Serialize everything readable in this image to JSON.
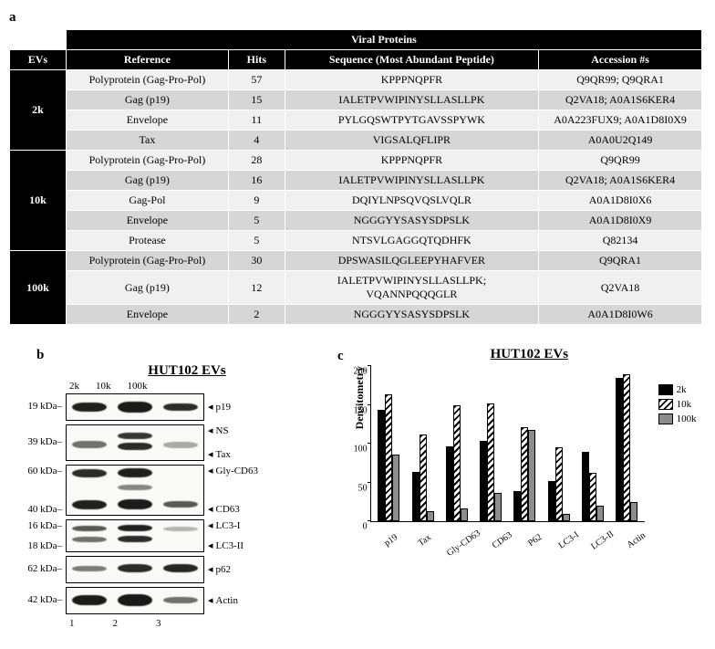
{
  "panels": {
    "a": "a",
    "b": "b",
    "c": "c"
  },
  "table": {
    "super_header": "Viral Proteins",
    "headers": {
      "evs": "EVs",
      "ref": "Reference",
      "hits": "Hits",
      "seq": "Sequence (Most Abundant Peptide)",
      "acc": "Accession #s"
    },
    "groups": [
      {
        "ev": "2k",
        "rows": [
          {
            "ref": "Polyprotein (Gag-Pro-Pol)",
            "hits": 57,
            "seq": "KPPPNQPFR",
            "acc": "Q9QR99; Q9QRA1",
            "shade": "light"
          },
          {
            "ref": "Gag (p19)",
            "hits": 15,
            "seq": "IALETPVWIPINYSLLASLLPK",
            "acc": "Q2VA18; A0A1S6KER4",
            "shade": "dark"
          },
          {
            "ref": "Envelope",
            "hits": 11,
            "seq": "PYLGQSWTPYTGAVSSPYWK",
            "acc": "A0A223FUX9; A0A1D8I0X9",
            "shade": "light"
          },
          {
            "ref": "Tax",
            "hits": 4,
            "seq": "VIGSALQFLIPR",
            "acc": "A0A0U2Q149",
            "shade": "dark"
          }
        ]
      },
      {
        "ev": "10k",
        "rows": [
          {
            "ref": "Polyprotein (Gag-Pro-Pol)",
            "hits": 28,
            "seq": "KPPPNQPFR",
            "acc": "Q9QR99",
            "shade": "light"
          },
          {
            "ref": "Gag (p19)",
            "hits": 16,
            "seq": "IALETPVWIPINYSLLASLLPK",
            "acc": "Q2VA18; A0A1S6KER4",
            "shade": "dark"
          },
          {
            "ref": "Gag-Pol",
            "hits": 9,
            "seq": "DQIYLNPSQVQSLVQLR",
            "acc": "A0A1D8I0X6",
            "shade": "light"
          },
          {
            "ref": "Envelope",
            "hits": 5,
            "seq": "NGGGYYSASYSDPSLK",
            "acc": "A0A1D8I0X9",
            "shade": "dark"
          },
          {
            "ref": "Protease",
            "hits": 5,
            "seq": "NTSVLGAGGQTQDHFK",
            "acc": "Q82134",
            "shade": "light"
          }
        ]
      },
      {
        "ev": "100k",
        "rows": [
          {
            "ref": "Polyprotein (Gag-Pro-Pol)",
            "hits": 30,
            "seq": "DPSWASILQGLEEPYHAFVER",
            "acc": "Q9QRA1",
            "shade": "dark"
          },
          {
            "ref": "Gag (p19)",
            "hits": 12,
            "seq": "IALETPVWIPINYSLLASLLPK; VQANNPQQQGLR",
            "acc": "Q2VA18",
            "shade": "light"
          },
          {
            "ref": "Envelope",
            "hits": 2,
            "seq": "NGGGYYSASYSDPSLK",
            "acc": "A0A1D8I0W6",
            "shade": "dark"
          }
        ]
      }
    ]
  },
  "blots": {
    "title": "HUT102 EVs",
    "lanes": [
      "2k",
      "10k",
      "100k"
    ],
    "lane_nums": [
      "1",
      "2",
      "3"
    ],
    "rows": [
      {
        "height": 28,
        "kda_lines": [
          "19 kDa–"
        ],
        "labels": [
          "p19"
        ],
        "bands": [
          [
            {
              "top": 32,
              "h": 36,
              "op": 0.95
            }
          ],
          [
            {
              "top": 28,
              "h": 44,
              "op": 0.97
            }
          ],
          [
            {
              "top": 34,
              "h": 30,
              "op": 0.9
            }
          ]
        ]
      },
      {
        "height": 38,
        "kda_lines": [
          "39 kDa–"
        ],
        "labels": [
          "NS",
          "Tax"
        ],
        "bands": [
          [
            {
              "top": 45,
              "h": 22,
              "op": 0.6
            }
          ],
          [
            {
              "top": 20,
              "h": 20,
              "op": 0.85
            },
            {
              "top": 50,
              "h": 22,
              "op": 0.9
            }
          ],
          [
            {
              "top": 48,
              "h": 18,
              "op": 0.35
            }
          ]
        ]
      },
      {
        "height": 54,
        "kda_lines": [
          "60 kDa–",
          "",
          "40 kDa–"
        ],
        "labels": [
          "Gly-CD63",
          "",
          "CD63"
        ],
        "bands": [
          [
            {
              "top": 8,
              "h": 16,
              "op": 0.9
            },
            {
              "top": 70,
              "h": 18,
              "op": 0.95
            }
          ],
          [
            {
              "top": 6,
              "h": 18,
              "op": 0.95
            },
            {
              "top": 38,
              "h": 12,
              "op": 0.5
            },
            {
              "top": 68,
              "h": 20,
              "op": 0.97
            }
          ],
          [
            {
              "top": 72,
              "h": 14,
              "op": 0.7
            }
          ]
        ]
      },
      {
        "height": 34,
        "kda_lines": [
          "16 kDa–",
          "18 kDa–"
        ],
        "labels": [
          "LC3-I",
          "LC3-II"
        ],
        "bands": [
          [
            {
              "top": 18,
              "h": 18,
              "op": 0.7
            },
            {
              "top": 52,
              "h": 18,
              "op": 0.6
            }
          ],
          [
            {
              "top": 14,
              "h": 22,
              "op": 0.95
            },
            {
              "top": 50,
              "h": 22,
              "op": 0.9
            }
          ],
          [
            {
              "top": 20,
              "h": 14,
              "op": 0.3
            }
          ]
        ]
      },
      {
        "height": 28,
        "kda_lines": [
          "62 kDa–"
        ],
        "labels": [
          "p62"
        ],
        "bands": [
          [
            {
              "top": 34,
              "h": 24,
              "op": 0.55
            }
          ],
          [
            {
              "top": 30,
              "h": 30,
              "op": 0.9
            }
          ],
          [
            {
              "top": 30,
              "h": 30,
              "op": 0.92
            }
          ]
        ]
      },
      {
        "height": 28,
        "kda_lines": [
          "42 kDa–"
        ],
        "labels": [
          "Actin"
        ],
        "bands": [
          [
            {
              "top": 28,
              "h": 40,
              "op": 0.97
            }
          ],
          [
            {
              "top": 26,
              "h": 44,
              "op": 0.98
            }
          ],
          [
            {
              "top": 36,
              "h": 24,
              "op": 0.6
            }
          ]
        ]
      }
    ]
  },
  "chart": {
    "title": "HUT102 EVs",
    "ylabel": "Densitometry",
    "ymax": 200,
    "yticks": [
      0,
      50,
      100,
      150,
      200
    ],
    "categories": [
      "p19",
      "Tax",
      "Gly-CD63",
      "CD63",
      "P62",
      "LC3-I",
      "LC3-II",
      "Actin"
    ],
    "series": [
      {
        "key": "k2",
        "label": "2k",
        "color": "#000000"
      },
      {
        "key": "k10",
        "label": "10k",
        "color": "hatch"
      },
      {
        "key": "k100",
        "label": "100k",
        "color": "#8c8c8c"
      }
    ],
    "data": {
      "k2": [
        143,
        64,
        96,
        104,
        39,
        52,
        90,
        185
      ],
      "k10": [
        163,
        112,
        150,
        152,
        121,
        95,
        62,
        190
      ],
      "k100": [
        86,
        13,
        17,
        36,
        118,
        10,
        20,
        25
      ]
    }
  }
}
